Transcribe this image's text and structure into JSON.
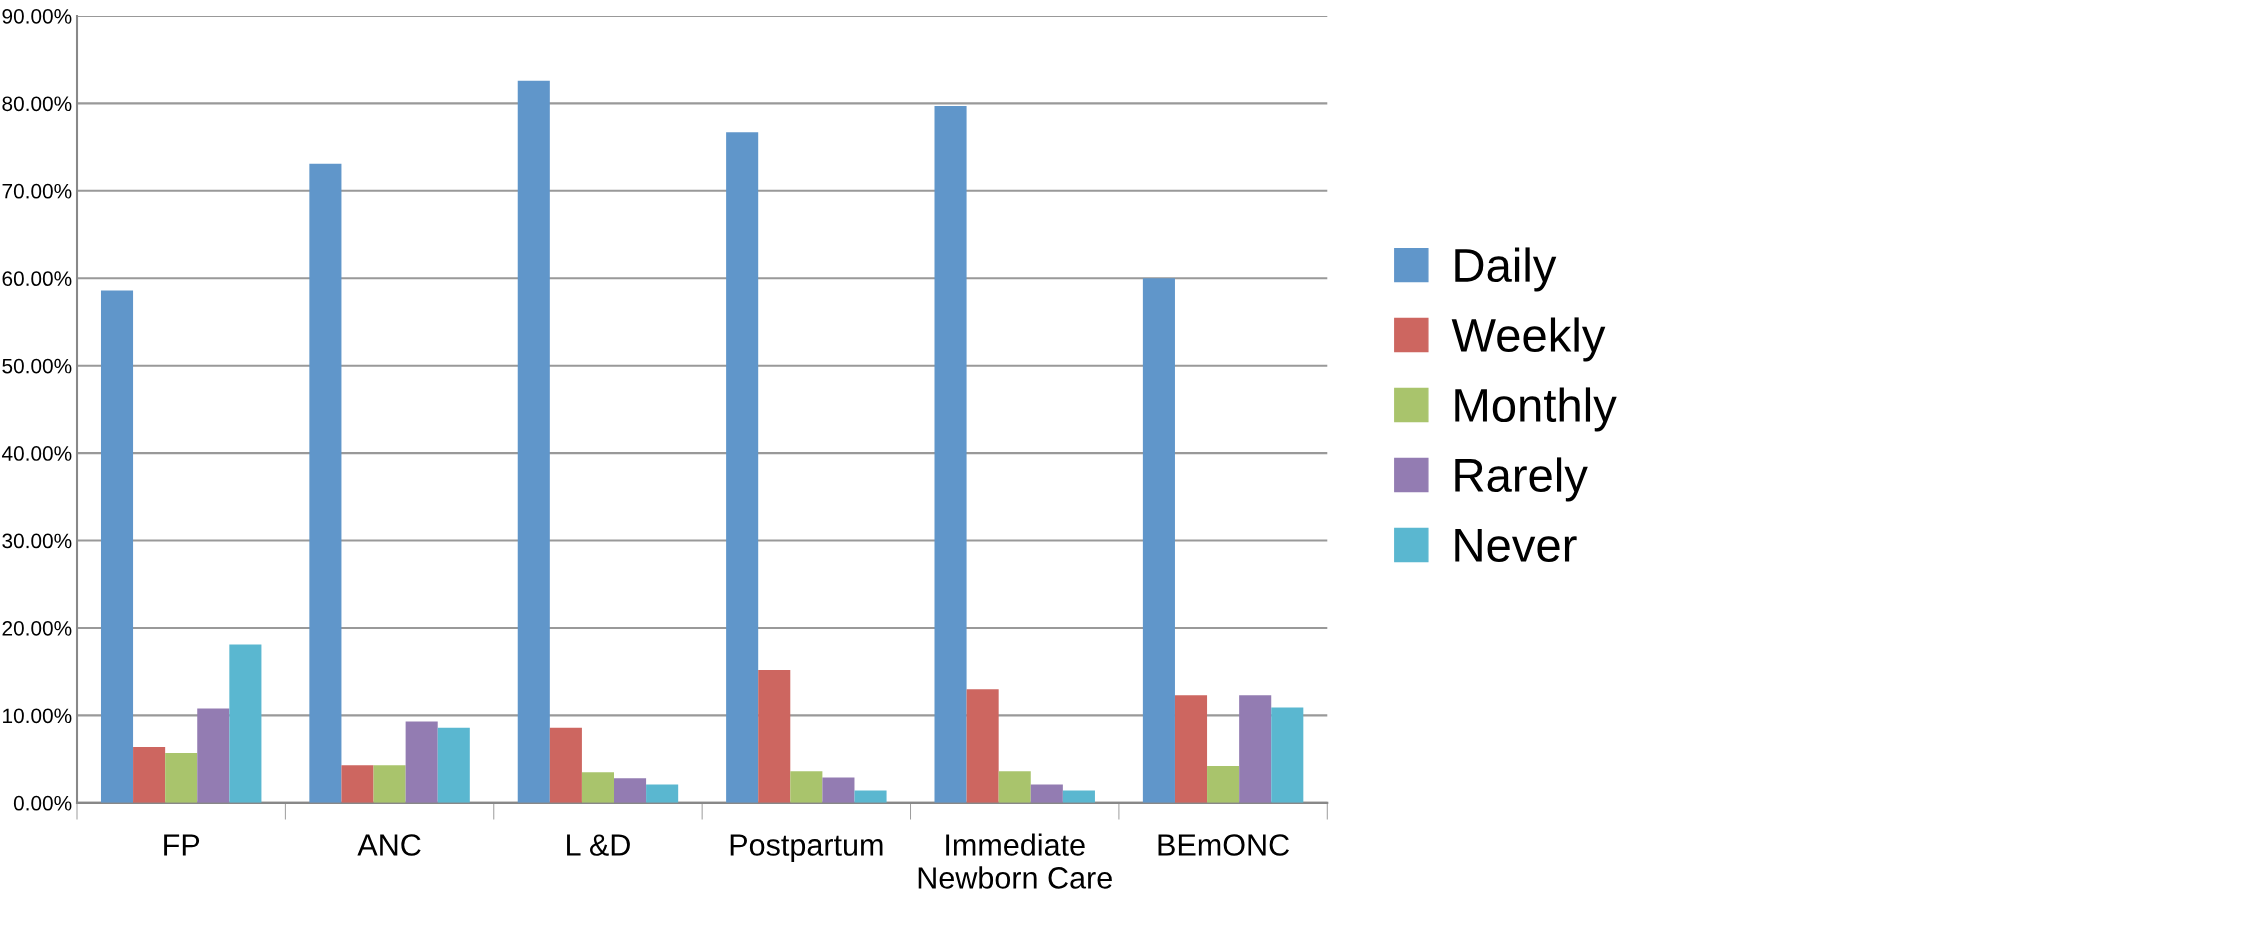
{
  "chart_data": {
    "type": "bar",
    "categories": [
      "FP",
      "ANC",
      "L &D",
      "Postpartum",
      "Immediate\nNewborn Care",
      "BEmONC"
    ],
    "series": [
      {
        "name": "Daily",
        "color": "#6096ca",
        "values": [
          58.6,
          73.1,
          82.6,
          76.7,
          79.7,
          60.0
        ]
      },
      {
        "name": "Weekly",
        "color": "#cd6660",
        "values": [
          6.4,
          4.3,
          8.6,
          15.2,
          13.0,
          12.3
        ]
      },
      {
        "name": "Monthly",
        "color": "#a9c46c",
        "values": [
          5.7,
          4.3,
          3.5,
          3.6,
          3.6,
          4.2
        ]
      },
      {
        "name": "Rarely",
        "color": "#937cb2",
        "values": [
          10.8,
          9.3,
          2.8,
          2.9,
          2.1,
          12.3
        ]
      },
      {
        "name": "Never",
        "color": "#5ab7d0",
        "values": [
          18.1,
          8.6,
          2.1,
          1.4,
          1.4,
          10.9
        ]
      }
    ],
    "ylim": [
      0,
      90
    ],
    "yticks": [
      {
        "value": 0,
        "label": "0.00%"
      },
      {
        "value": 10,
        "label": "10.00%"
      },
      {
        "value": 20,
        "label": "20.00%"
      },
      {
        "value": 30,
        "label": "30.00%"
      },
      {
        "value": 40,
        "label": "40.00%"
      },
      {
        "value": 50,
        "label": "50.00%"
      },
      {
        "value": 60,
        "label": "60.00%"
      },
      {
        "value": 70,
        "label": "70.00%"
      },
      {
        "value": 80,
        "label": "80.00%"
      },
      {
        "value": 90,
        "label": "90.00%"
      }
    ],
    "grid": "y",
    "legend": "right"
  }
}
